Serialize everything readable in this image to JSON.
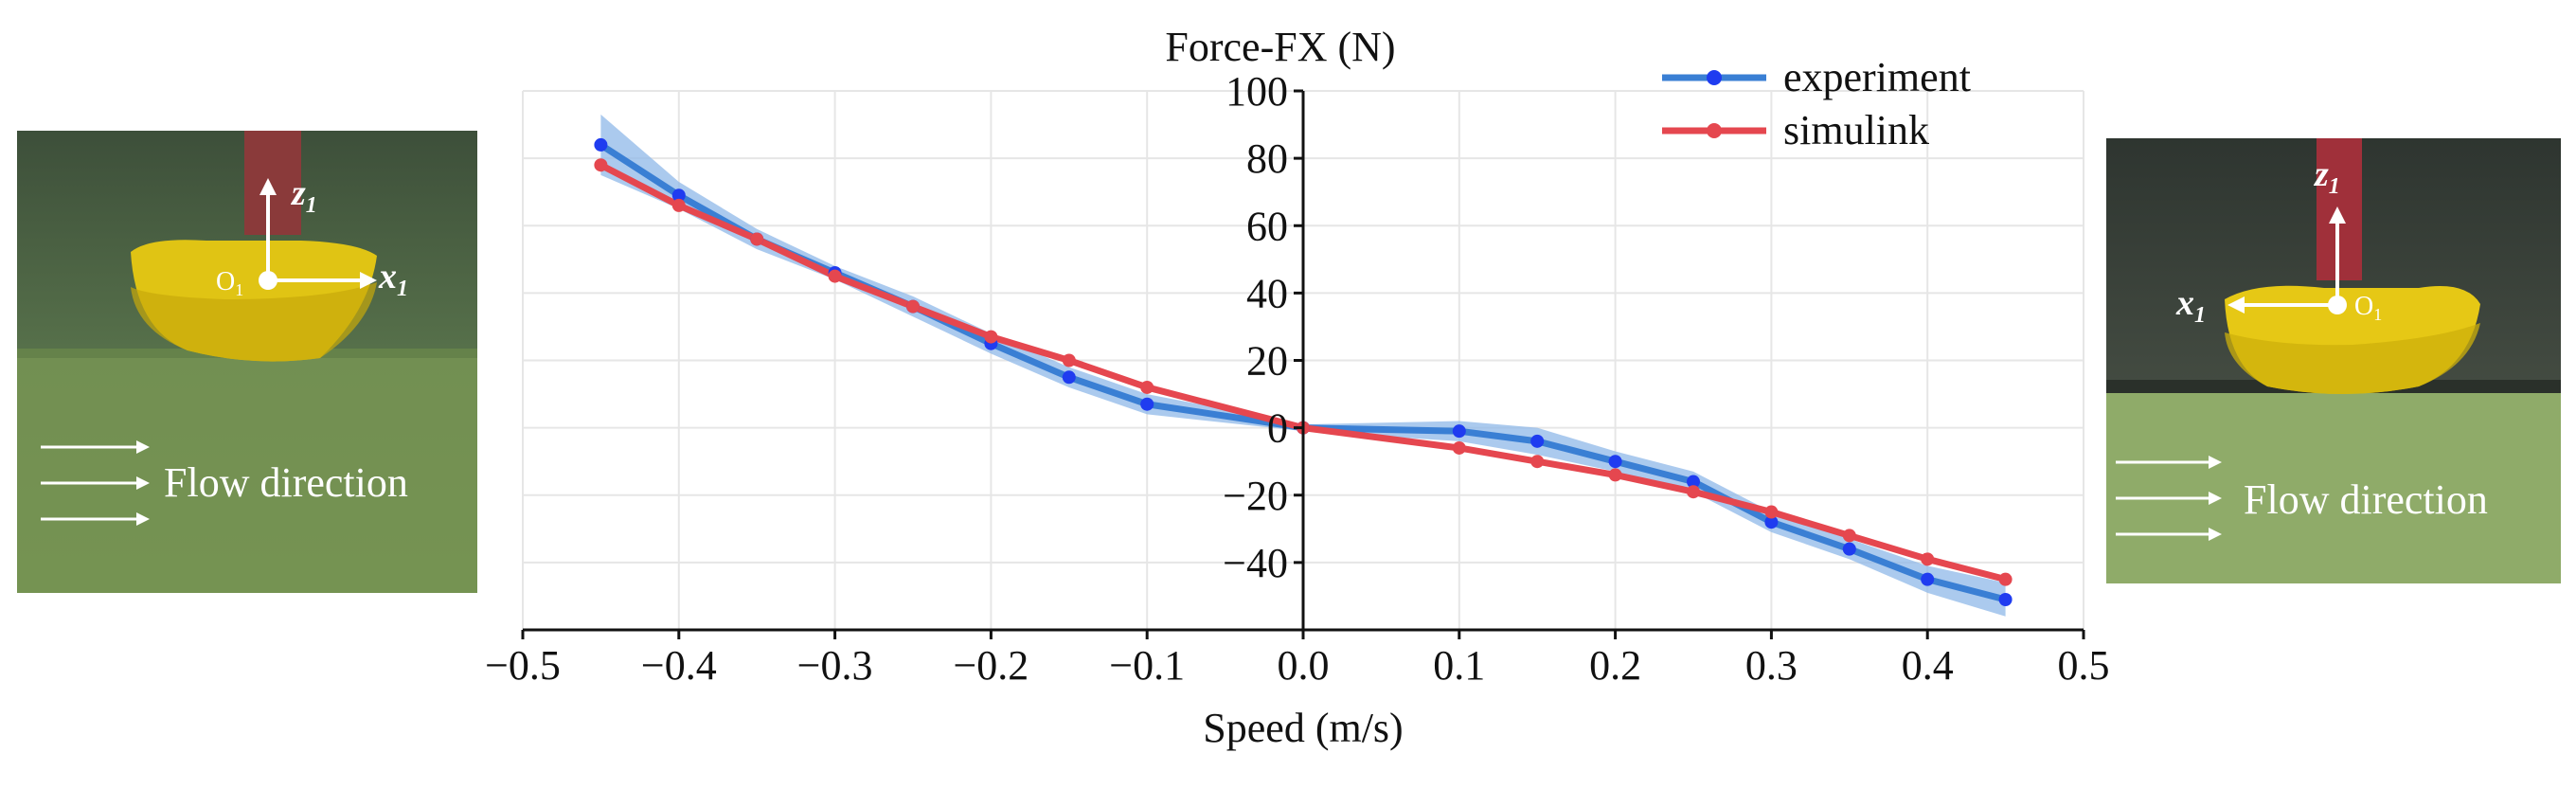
{
  "chart_data": {
    "type": "line",
    "title": "Force-FX (N)",
    "xlabel": "Speed (m/s)",
    "xlim": [
      -0.5,
      0.5
    ],
    "ylim": [
      -60,
      100
    ],
    "xticks": [
      -0.5,
      -0.4,
      -0.3,
      -0.2,
      -0.1,
      0.0,
      0.1,
      0.2,
      0.3,
      0.4,
      0.5
    ],
    "xtick_labels": [
      "−0.5",
      "−0.4",
      "−0.3",
      "−0.2",
      "−0.1",
      "0.0",
      "0.1",
      "0.2",
      "0.3",
      "0.4",
      "0.5"
    ],
    "yticks": [
      -40,
      -20,
      0,
      20,
      40,
      60,
      80,
      100
    ],
    "ytick_labels": [
      "−40",
      "−20",
      "0",
      "20",
      "40",
      "60",
      "80",
      "100"
    ],
    "grid": true,
    "legend_position": "top-right",
    "series": [
      {
        "name": "experiment",
        "color": "#3a7fd4",
        "marker_color": "#1f3cf0",
        "band_color": "#8fb8e8",
        "x": [
          -0.45,
          -0.4,
          -0.35,
          -0.3,
          -0.25,
          -0.2,
          -0.15,
          -0.1,
          0.0,
          0.1,
          0.15,
          0.2,
          0.25,
          0.3,
          0.35,
          0.4,
          0.45
        ],
        "y": [
          84,
          69,
          56,
          46,
          36,
          25,
          15,
          7,
          0,
          -1,
          -4,
          -10,
          -16,
          -28,
          -36,
          -45,
          -51
        ],
        "band_width": [
          9,
          4,
          3,
          2,
          3,
          3,
          3,
          3,
          1,
          3,
          4,
          3,
          3,
          3,
          3,
          4,
          5
        ]
      },
      {
        "name": "simulink",
        "color": "#e5474f",
        "marker_color": "#e5474f",
        "x": [
          -0.45,
          -0.4,
          -0.35,
          -0.3,
          -0.25,
          -0.2,
          -0.15,
          -0.1,
          0.0,
          0.1,
          0.15,
          0.2,
          0.25,
          0.3,
          0.35,
          0.4,
          0.45
        ],
        "y": [
          78,
          66,
          56,
          45,
          36,
          27,
          20,
          12,
          0,
          -6,
          -10,
          -14,
          -19,
          -25,
          -32,
          -39,
          -45
        ]
      }
    ]
  },
  "left_photo": {
    "flow_label": "Flow direction",
    "x_axis_label": "x",
    "x_axis_sub": "1",
    "z_axis_label": "z",
    "z_axis_sub": "1",
    "origin_label": "O",
    "origin_sub": "1"
  },
  "right_photo": {
    "flow_label": "Flow direction",
    "x_axis_label": "x",
    "x_axis_sub": "1",
    "z_axis_label": "z",
    "z_axis_sub": "1",
    "origin_label": "O",
    "origin_sub": "1"
  }
}
